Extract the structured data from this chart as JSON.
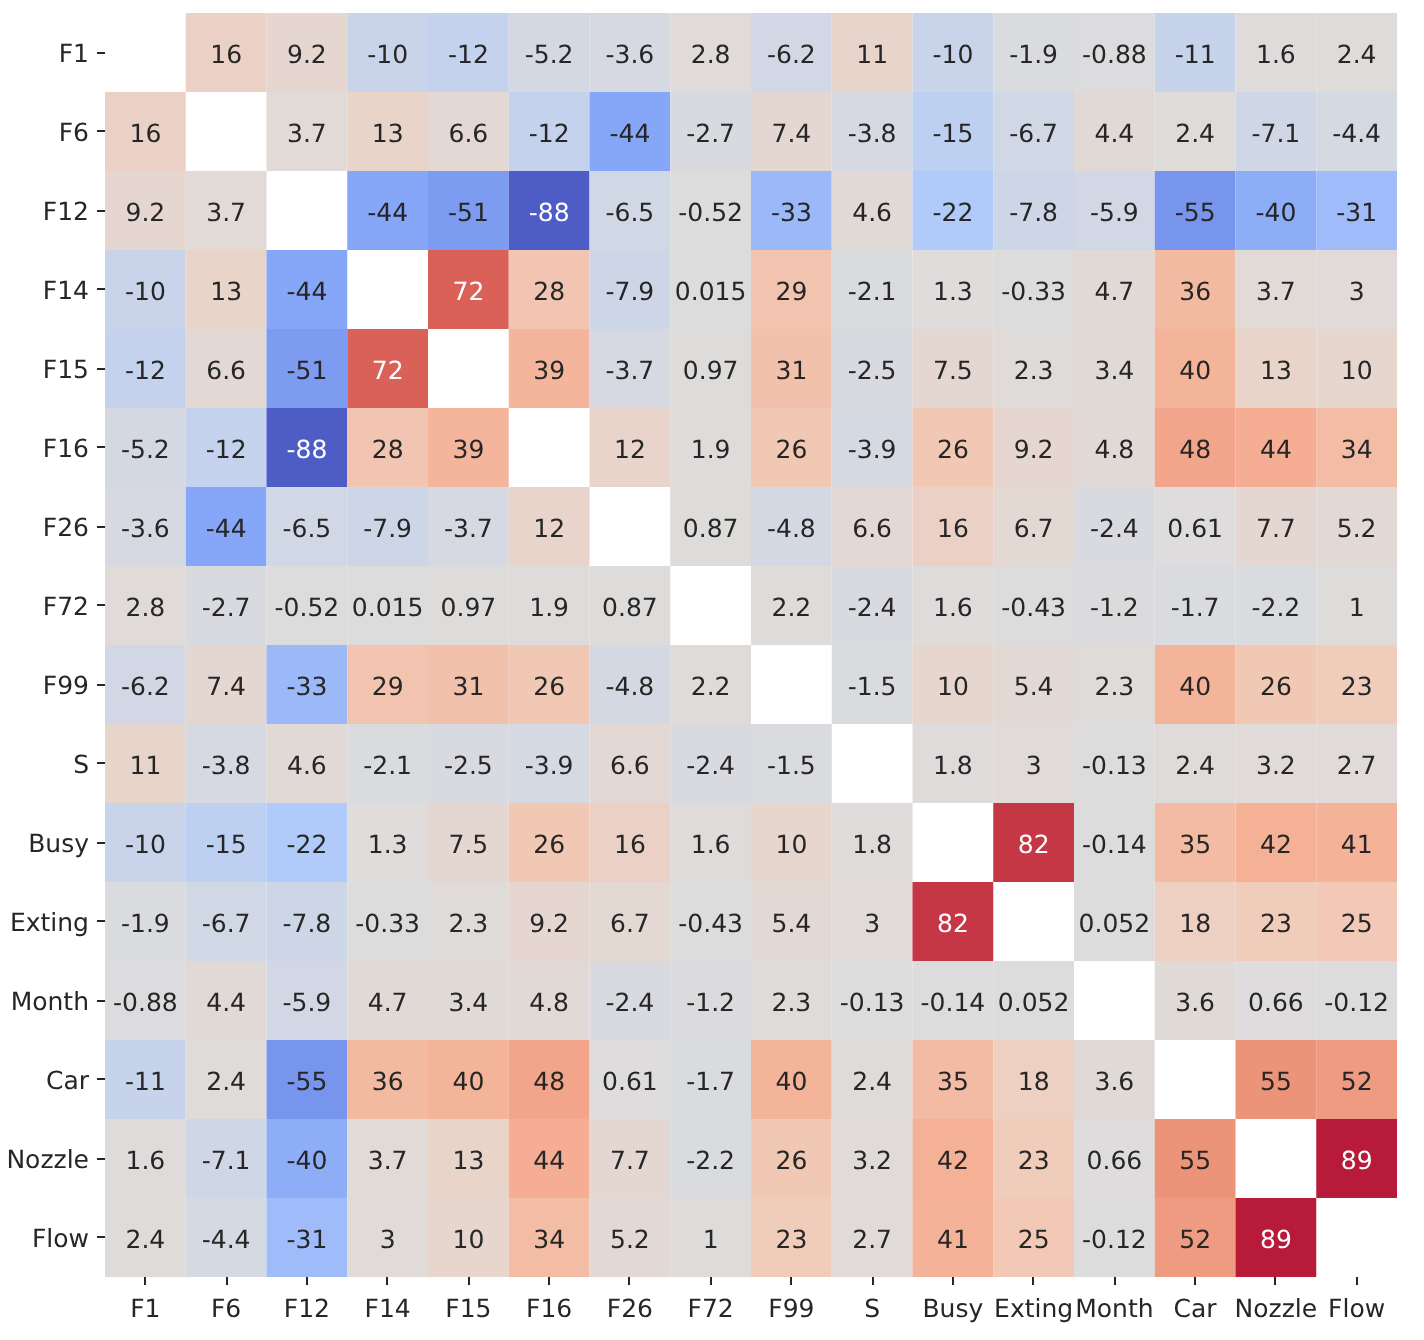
{
  "chart_data": {
    "type": "heatmap",
    "data_labels": true,
    "categories": [
      "F1",
      "F6",
      "F12",
      "F14",
      "F15",
      "F16",
      "F26",
      "F72",
      "F99",
      "S",
      "Busy",
      "Exting",
      "Month",
      "Car",
      "Nozzle",
      "Flow"
    ],
    "y_categories": [
      "F1",
      "F6",
      "F12",
      "F14",
      "F15",
      "F16",
      "F26",
      "F72",
      "F99",
      "S",
      "Busy",
      "Exting",
      "Month",
      "Car",
      "Nozzle",
      "Flow"
    ],
    "cells": [
      [
        null,
        16,
        9.2,
        -10,
        -12,
        -5.2,
        -3.6,
        2.8,
        -6.2,
        11,
        -10,
        -1.9,
        -0.88,
        -11,
        1.6,
        2.4
      ],
      [
        16,
        null,
        3.7,
        13,
        6.6,
        -12,
        -44,
        -2.7,
        7.4,
        -3.8,
        -15,
        -6.7,
        4.4,
        2.4,
        -7.1,
        -4.4
      ],
      [
        9.2,
        3.7,
        null,
        -44,
        -51,
        -88,
        -6.5,
        -0.52,
        -33,
        4.6,
        -22,
        -7.8,
        -5.9,
        -55,
        -40,
        -31
      ],
      [
        -10,
        13,
        -44,
        null,
        72,
        28,
        -7.9,
        0.015,
        29,
        -2.1,
        1.3,
        -0.33,
        4.7,
        36,
        3.7,
        3
      ],
      [
        -12,
        6.6,
        -51,
        72,
        null,
        39,
        -3.7,
        0.97,
        31,
        -2.5,
        7.5,
        2.3,
        3.4,
        40,
        13,
        10
      ],
      [
        -5.2,
        -12,
        -88,
        28,
        39,
        null,
        12,
        1.9,
        26,
        -3.9,
        26,
        9.2,
        4.8,
        48,
        44,
        34
      ],
      [
        -3.6,
        -44,
        -6.5,
        -7.9,
        -3.7,
        12,
        null,
        0.87,
        -4.8,
        6.6,
        16,
        6.7,
        -2.4,
        0.61,
        7.7,
        5.2
      ],
      [
        2.8,
        -2.7,
        -0.52,
        0.015,
        0.97,
        1.9,
        0.87,
        null,
        2.2,
        -2.4,
        1.6,
        -0.43,
        -1.2,
        -1.7,
        -2.2,
        1
      ],
      [
        -6.2,
        7.4,
        -33,
        29,
        31,
        26,
        -4.8,
        2.2,
        null,
        -1.5,
        10,
        5.4,
        2.3,
        40,
        26,
        23
      ],
      [
        11,
        -3.8,
        4.6,
        -2.1,
        -2.5,
        -3.9,
        6.6,
        -2.4,
        -1.5,
        null,
        1.8,
        3,
        -0.13,
        2.4,
        3.2,
        2.7
      ],
      [
        -10,
        -15,
        -22,
        1.3,
        7.5,
        26,
        16,
        1.6,
        10,
        1.8,
        null,
        82,
        -0.14,
        35,
        42,
        41
      ],
      [
        -1.9,
        -6.7,
        -7.8,
        -0.33,
        2.3,
        9.2,
        6.7,
        -0.43,
        5.4,
        3,
        82,
        null,
        0.052,
        18,
        23,
        25
      ],
      [
        -0.88,
        4.4,
        -5.9,
        4.7,
        3.4,
        4.8,
        -2.4,
        -1.2,
        2.3,
        -0.13,
        -0.14,
        0.052,
        null,
        3.6,
        0.66,
        -0.12
      ],
      [
        -11,
        2.4,
        -55,
        36,
        40,
        48,
        0.61,
        -1.7,
        40,
        2.4,
        35,
        18,
        3.6,
        null,
        55,
        52
      ],
      [
        1.6,
        -7.1,
        -40,
        3.7,
        13,
        44,
        7.7,
        -2.2,
        26,
        3.2,
        42,
        23,
        0.66,
        55,
        null,
        89
      ],
      [
        2.4,
        -4.4,
        -31,
        3,
        10,
        34,
        5.2,
        1,
        23,
        2.7,
        41,
        25,
        -0.12,
        52,
        89,
        null
      ]
    ]
  }
}
